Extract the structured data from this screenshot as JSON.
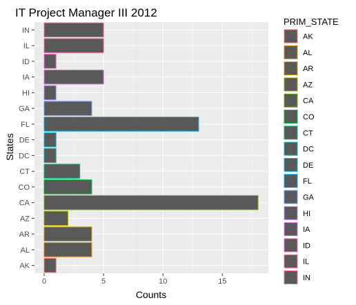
{
  "chart_data": {
    "type": "bar",
    "orientation": "horizontal",
    "title": "IT Project Manager III 2012",
    "xlabel": "Counts",
    "ylabel": "States",
    "xlim": [
      0,
      18
    ],
    "x_ticks": [
      0,
      5,
      10,
      15
    ],
    "grid": true,
    "categories": [
      "AK",
      "AL",
      "AR",
      "AZ",
      "CA",
      "CO",
      "CT",
      "DC",
      "DE",
      "FL",
      "GA",
      "HI",
      "IA",
      "ID",
      "IL",
      "IN"
    ],
    "values": [
      1,
      4,
      4,
      2,
      18,
      4,
      3,
      1,
      1,
      13,
      4,
      1,
      5,
      1,
      5,
      5
    ],
    "fill_color": "#595959",
    "outline_colors": [
      "#F8766D",
      "#E58700",
      "#C99800",
      "#A3A500",
      "#6BB100",
      "#00BA38",
      "#00BF7D",
      "#00C0AF",
      "#00BCD8",
      "#00B0F6",
      "#619CFF",
      "#B983FF",
      "#E76BF3",
      "#FD61D1",
      "#FF67A4",
      "#FF6C91"
    ],
    "legend": {
      "title": "PRIM_STATE",
      "position": "right",
      "entries": [
        "AK",
        "AL",
        "AR",
        "AZ",
        "CA",
        "CO",
        "CT",
        "DC",
        "DE",
        "FL",
        "GA",
        "HI",
        "IA",
        "ID",
        "IL",
        "IN"
      ]
    }
  }
}
